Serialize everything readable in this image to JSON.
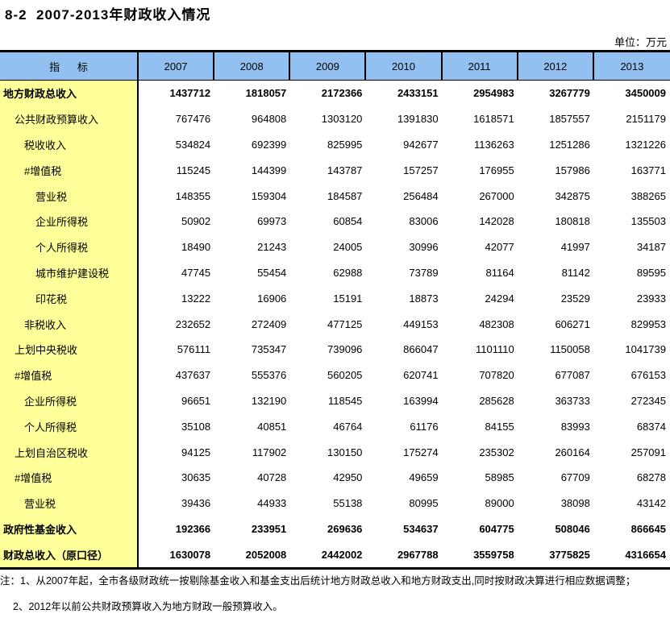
{
  "title": "8-2  2007-2013年财政收入情况",
  "unit_label": "单位：万元",
  "colors": {
    "header_bg": "#92C0F0",
    "label_bg": "#FFFF99",
    "border": "#000000",
    "text": "#000000"
  },
  "table": {
    "indicator_header": "指      标",
    "years": [
      "2007",
      "2008",
      "2009",
      "2010",
      "2011",
      "2012",
      "2013"
    ],
    "rows": [
      {
        "label": "地方财政总收入",
        "indent": 0,
        "bold": true,
        "values": [
          "1437712",
          "1818057",
          "2172366",
          "2433151",
          "2954983",
          "3267779",
          "3450009"
        ]
      },
      {
        "label": "公共财政预算收入",
        "indent": 1,
        "bold": false,
        "values": [
          "767476",
          "964808",
          "1303120",
          "1391830",
          "1618571",
          "1857557",
          "2151179"
        ]
      },
      {
        "label": "税收收入",
        "indent": 2,
        "bold": false,
        "values": [
          "534824",
          "692399",
          "825995",
          "942677",
          "1136263",
          "1251286",
          "1321226"
        ]
      },
      {
        "label": "#增值税",
        "indent": 2,
        "bold": false,
        "values": [
          "115245",
          "144399",
          "143787",
          "157257",
          "176955",
          "157986",
          "163771"
        ]
      },
      {
        "label": "营业税",
        "indent": 3,
        "bold": false,
        "values": [
          "148355",
          "159304",
          "184587",
          "256484",
          "267000",
          "342875",
          "388265"
        ]
      },
      {
        "label": "企业所得税",
        "indent": 3,
        "bold": false,
        "values": [
          "50902",
          "69973",
          "60854",
          "83006",
          "142028",
          "180818",
          "135503"
        ]
      },
      {
        "label": "个人所得税",
        "indent": 3,
        "bold": false,
        "values": [
          "18490",
          "21243",
          "24005",
          "30996",
          "42077",
          "41997",
          "34187"
        ]
      },
      {
        "label": "城市维护建设税",
        "indent": 3,
        "bold": false,
        "values": [
          "47745",
          "55454",
          "62988",
          "73789",
          "81164",
          "81142",
          "89595"
        ]
      },
      {
        "label": "印花税",
        "indent": 3,
        "bold": false,
        "values": [
          "13222",
          "16906",
          "15191",
          "18873",
          "24294",
          "23529",
          "23933"
        ]
      },
      {
        "label": "非税收入",
        "indent": 2,
        "bold": false,
        "values": [
          "232652",
          "272409",
          "477125",
          "449153",
          "482308",
          "606271",
          "829953"
        ]
      },
      {
        "label": "上划中央税收",
        "indent": 1,
        "bold": false,
        "values": [
          "576111",
          "735347",
          "739096",
          "866047",
          "1101110",
          "1150058",
          "1041739"
        ]
      },
      {
        "label": "#增值税",
        "indent": 1,
        "bold": false,
        "values": [
          "437637",
          "555376",
          "560205",
          "620741",
          "707820",
          "677087",
          "676153"
        ]
      },
      {
        "label": "企业所得税",
        "indent": 2,
        "bold": false,
        "values": [
          "96651",
          "132190",
          "118545",
          "163994",
          "285628",
          "363733",
          "272345"
        ]
      },
      {
        "label": "个人所得税",
        "indent": 2,
        "bold": false,
        "values": [
          "35108",
          "40851",
          "46764",
          "61176",
          "84155",
          "83993",
          "68374"
        ]
      },
      {
        "label": "上划自治区税收",
        "indent": 1,
        "bold": false,
        "values": [
          "94125",
          "117902",
          "130150",
          "175274",
          "235302",
          "260164",
          "257091"
        ]
      },
      {
        "label": "#增值税",
        "indent": 1,
        "bold": false,
        "values": [
          "30635",
          "40728",
          "42950",
          "49659",
          "58985",
          "67709",
          "68278"
        ]
      },
      {
        "label": "营业税",
        "indent": 2,
        "bold": false,
        "values": [
          "39436",
          "44933",
          "55138",
          "80995",
          "89000",
          "38098",
          "43142"
        ]
      },
      {
        "label": "政府性基金收入",
        "indent": 0,
        "bold": true,
        "values": [
          "192366",
          "233951",
          "269636",
          "534637",
          "604775",
          "508046",
          "866645"
        ]
      },
      {
        "label": "财政总收入（原口径）",
        "indent": 0,
        "bold": true,
        "values": [
          "1630078",
          "2052008",
          "2442002",
          "2967788",
          "3559758",
          "3775825",
          "4316654"
        ]
      }
    ]
  },
  "notes": [
    "注：1、从2007年起，全市各级财政统一按剔除基金收入和基金支出后统计地方财政总收入和地方财政支出,同时按财政决算进行相应数据调整；",
    "2、2012年以前公共财政预算收入为地方财政一般预算收入。"
  ]
}
